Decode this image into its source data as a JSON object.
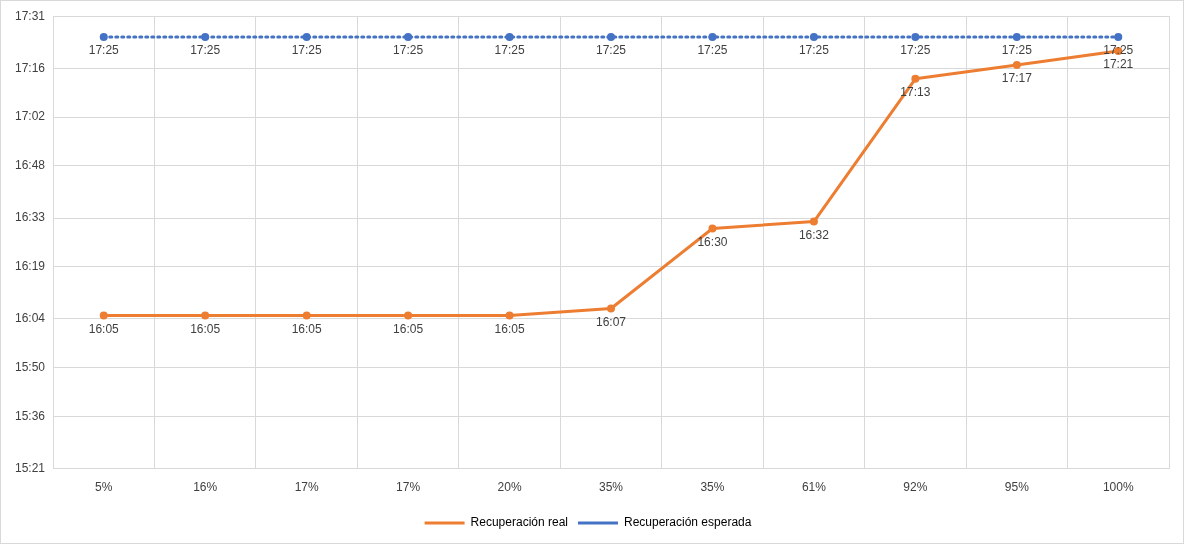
{
  "chart_data": {
    "type": "line",
    "categories": [
      "5%",
      "16%",
      "17%",
      "17%",
      "20%",
      "35%",
      "35%",
      "61%",
      "92%",
      "95%",
      "100%"
    ],
    "series": [
      {
        "name": "Recuperación real",
        "color": "#ed7d31",
        "line_style": "solid",
        "values": [
          16.0833,
          16.0833,
          16.0833,
          16.0833,
          16.0833,
          16.1167,
          16.5,
          16.5333,
          17.2167,
          17.2833,
          17.35
        ],
        "value_labels": [
          "16:05",
          "16:05",
          "16:05",
          "16:05",
          "16:05",
          "16:07",
          "16:30",
          "16:32",
          "17:13",
          "17:17",
          "17:21"
        ]
      },
      {
        "name": "Recuperación esperada",
        "color": "#4472c4",
        "line_style": "dotted",
        "values": [
          17.4167,
          17.4167,
          17.4167,
          17.4167,
          17.4167,
          17.4167,
          17.4167,
          17.4167,
          17.4167,
          17.4167,
          17.4167
        ],
        "value_labels": [
          "17:25",
          "17:25",
          "17:25",
          "17:25",
          "17:25",
          "17:25",
          "17:25",
          "17:25",
          "17:25",
          "17:25",
          "17:25"
        ]
      }
    ],
    "ylim": [
      15.35,
      17.5167
    ],
    "yticks": [
      {
        "value": 15.35,
        "label": "15:21"
      },
      {
        "value": 15.6,
        "label": "15:36"
      },
      {
        "value": 15.8333,
        "label": "15:50"
      },
      {
        "value": 16.0667,
        "label": "16:04"
      },
      {
        "value": 16.3167,
        "label": "16:19"
      },
      {
        "value": 16.55,
        "label": "16:33"
      },
      {
        "value": 16.8,
        "label": "16:48"
      },
      {
        "value": 17.0333,
        "label": "17:02"
      },
      {
        "value": 17.2667,
        "label": "17:16"
      },
      {
        "value": 17.5167,
        "label": "17:31"
      }
    ],
    "grid": true,
    "legend": "bottom",
    "marker": "circle"
  }
}
